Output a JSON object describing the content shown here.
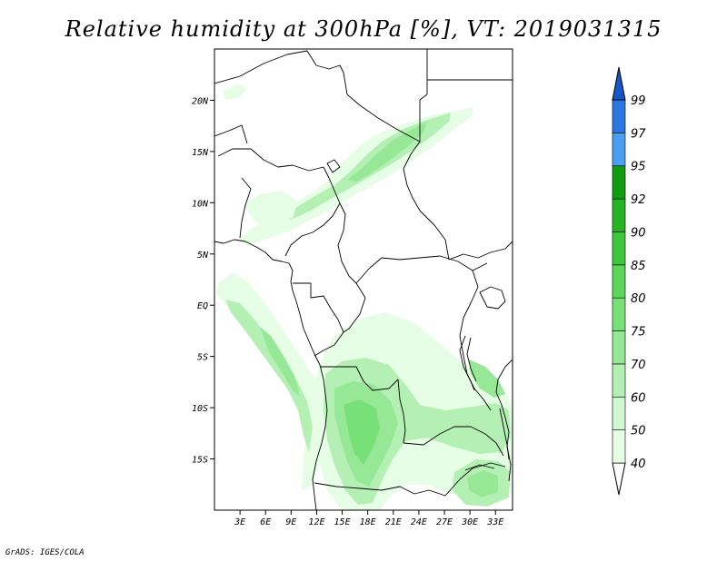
{
  "title": "Relative humidity at 300hPa [%], VT: 2019031315",
  "credit": "GrADS: IGES/COLA",
  "axes": {
    "lat_labels": [
      "20N",
      "15N",
      "10N",
      "5N",
      "EQ",
      "5S",
      "10S",
      "15S"
    ],
    "lat_values": [
      20,
      15,
      10,
      5,
      0,
      -5,
      -10,
      -15
    ],
    "lon_labels": [
      "3E",
      "6E",
      "9E",
      "12E",
      "15E",
      "18E",
      "21E",
      "24E",
      "27E",
      "30E",
      "33E"
    ],
    "lon_values": [
      3,
      6,
      9,
      12,
      15,
      18,
      21,
      24,
      27,
      30,
      33
    ],
    "lon_range": [
      0,
      35
    ],
    "lat_range": [
      -20,
      25
    ]
  },
  "colorbar": {
    "levels": [
      "40",
      "50",
      "60",
      "70",
      "75",
      "80",
      "85",
      "90",
      "92",
      "95",
      "97",
      "99"
    ],
    "colors": [
      "#ffffff",
      "#e6fde6",
      "#d0f8d0",
      "#b4f0b4",
      "#96e896",
      "#78e078",
      "#5ad65a",
      "#3cc83c",
      "#24b424",
      "#109c10",
      "#4aa0f0",
      "#2878e0",
      "#1458c8"
    ]
  }
}
